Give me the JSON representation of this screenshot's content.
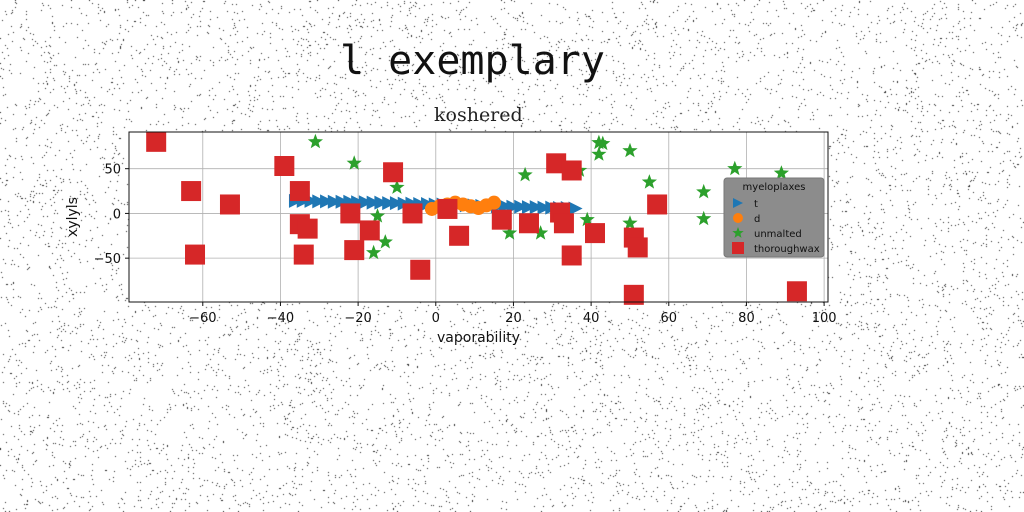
{
  "suptitle": "l exemplary",
  "chart_data": {
    "type": "scatter",
    "title": "koshered",
    "xlabel": "vaporability",
    "ylabel": "xylyls",
    "xlim": [
      -79,
      101
    ],
    "ylim": [
      -99,
      91
    ],
    "xticks": [
      -60,
      -40,
      -20,
      0,
      20,
      40,
      60,
      80,
      100
    ],
    "yticks": [
      -50,
      0,
      50
    ],
    "grid": true,
    "legend": {
      "title": "myeloplaxes",
      "placement": "right"
    },
    "series": [
      {
        "name": "t",
        "marker": "triangle-right",
        "color": "#1f77b4",
        "x": [
          -36,
          -34,
          -32,
          -30,
          -28,
          -26,
          -24,
          -22,
          -20,
          -18,
          -16,
          -14,
          -12,
          -10,
          -8,
          -6,
          -4,
          -2,
          0,
          2,
          4,
          6,
          8,
          10,
          12,
          14,
          16,
          18,
          20,
          22,
          24,
          26,
          28,
          30,
          32,
          34,
          36
        ],
        "y": [
          14,
          14,
          14,
          13.5,
          13.5,
          13,
          13,
          13,
          12.5,
          12.5,
          12,
          12,
          11.5,
          11.5,
          11,
          11,
          10.5,
          10.5,
          10,
          10,
          9.5,
          9.5,
          9,
          9,
          8.5,
          8.5,
          8,
          8,
          7.5,
          7.5,
          7,
          7,
          6.5,
          6.5,
          6,
          6,
          5.5
        ]
      },
      {
        "name": "d",
        "marker": "circle",
        "color": "#ff7f0e",
        "x": [
          -1,
          1,
          3,
          5,
          7,
          9,
          11,
          13,
          15
        ],
        "y": [
          5,
          8,
          10,
          12,
          10,
          8,
          6,
          9,
          12
        ]
      },
      {
        "name": "unmalted",
        "marker": "star",
        "color": "#2ca02c",
        "x": [
          -31,
          -21,
          -10,
          -15,
          -13,
          -16,
          19,
          23,
          27,
          37,
          39,
          42,
          43,
          42,
          50,
          50,
          55,
          69,
          69,
          77,
          89,
          35
        ],
        "y": [
          80,
          56,
          29,
          -3,
          -32,
          -44,
          -22,
          43,
          -22,
          48,
          -7,
          79,
          78,
          66,
          70,
          -11,
          35,
          24,
          -6,
          50,
          45,
          47
        ]
      },
      {
        "name": "thoroughwax",
        "marker": "square",
        "color": "#d62728",
        "x": [
          -72,
          -63,
          -62,
          -53,
          -39,
          -35,
          -35,
          -34,
          -33,
          -22,
          -21,
          -17,
          -11,
          -6,
          -4,
          3,
          6,
          17,
          24,
          31,
          32,
          33,
          35,
          35,
          41,
          51,
          52,
          57,
          51,
          93
        ],
        "y": [
          80,
          25,
          -46,
          10,
          53,
          25,
          -12,
          -46,
          -17,
          0,
          -41,
          -19,
          46,
          0,
          -63,
          5,
          -25,
          -7,
          -11,
          56,
          1,
          -11,
          48,
          -47,
          -22,
          -27,
          -38,
          10,
          -91,
          -87
        ]
      }
    ]
  }
}
